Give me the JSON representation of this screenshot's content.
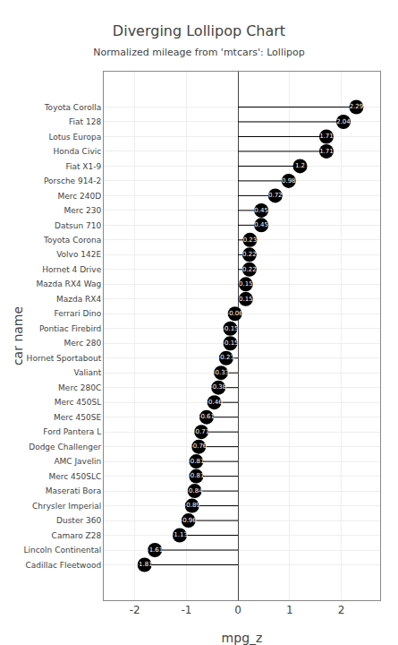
{
  "chart_data": {
    "type": "lollipop",
    "title": "Diverging Lollipop Chart",
    "subtitle": "Normalized mileage from 'mtcars': Lollipop",
    "x_label": "mpg_z",
    "y_label": "car name",
    "orientation": "horizontal",
    "categories": [
      "Toyota Corolla",
      "Fiat 128",
      "Lotus Europa",
      "Honda Civic",
      "Fiat X1-9",
      "Porsche 914-2",
      "Merc 240D",
      "Merc 230",
      "Datsun 710",
      "Toyota Corona",
      "Volvo 142E",
      "Hornet 4 Drive",
      "Mazda RX4 Wag",
      "Mazda RX4",
      "Ferrari Dino",
      "Pontiac Firebird",
      "Merc 280",
      "Hornet Sportabout",
      "Valiant",
      "Merc 280C",
      "Merc 450SL",
      "Merc 450SE",
      "Ford Pantera L",
      "Dodge Challenger",
      "AMC Javelin",
      "Merc 450SLC",
      "Maserati Bora",
      "Chrysler Imperial",
      "Duster 360",
      "Camaro Z28",
      "Lincoln Continental",
      "Cadillac Fleetwood"
    ],
    "values": [
      2.29,
      2.04,
      1.71,
      1.71,
      1.2,
      0.98,
      0.72,
      0.45,
      0.45,
      0.23,
      0.22,
      0.22,
      0.15,
      0.15,
      -0.06,
      -0.15,
      -0.15,
      -0.23,
      -0.33,
      -0.38,
      -0.46,
      -0.61,
      -0.71,
      -0.76,
      -0.81,
      -0.81,
      -0.84,
      -0.89,
      -0.96,
      -1.13,
      -1.61,
      -1.81
    ],
    "color": "#000000",
    "data_labels": true,
    "grid": true,
    "xlim": [
      -2.6,
      2.75
    ],
    "xticks": [
      -2,
      -1,
      0,
      1,
      2
    ]
  }
}
